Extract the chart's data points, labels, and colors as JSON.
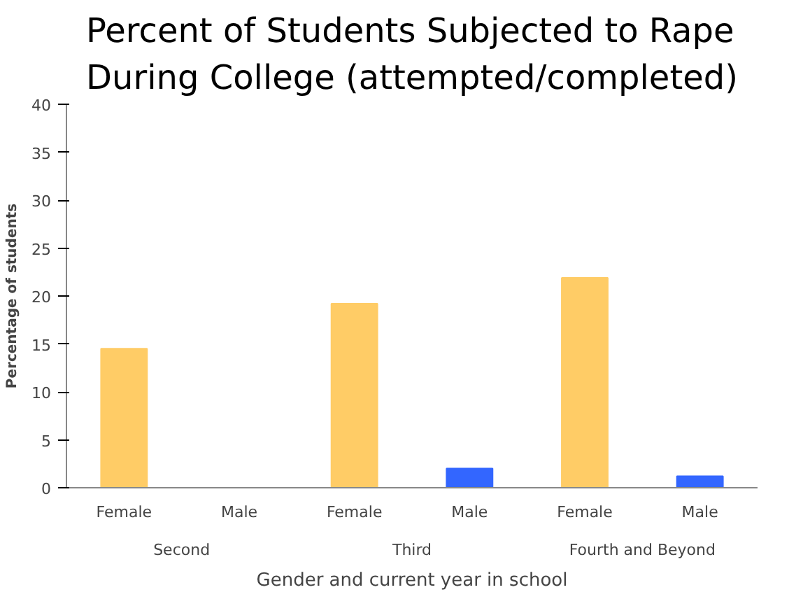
{
  "chart_data": {
    "type": "bar",
    "title": "Percent of Students Subjected to Rape\nDuring College (attempted/completed)",
    "categories": [
      "Female",
      "Male",
      "Female",
      "Male",
      "Female",
      "Male"
    ],
    "values": [
      14.5,
      0,
      19.2,
      2.0,
      21.9,
      1.2
    ],
    "colors": [
      "#ffcc66",
      "#3366ff",
      "#ffcc66",
      "#3366ff",
      "#ffcc66",
      "#3366ff"
    ],
    "annotations": [
      "Second",
      "Third",
      "Fourth and Beyond"
    ],
    "xlabel": "Gender and current year in school",
    "ylabel": "Percentage of students",
    "ylim": [
      0,
      40
    ],
    "yticks": [
      0,
      5,
      10,
      15,
      20,
      25,
      30,
      35,
      40
    ],
    "grid": false
  }
}
